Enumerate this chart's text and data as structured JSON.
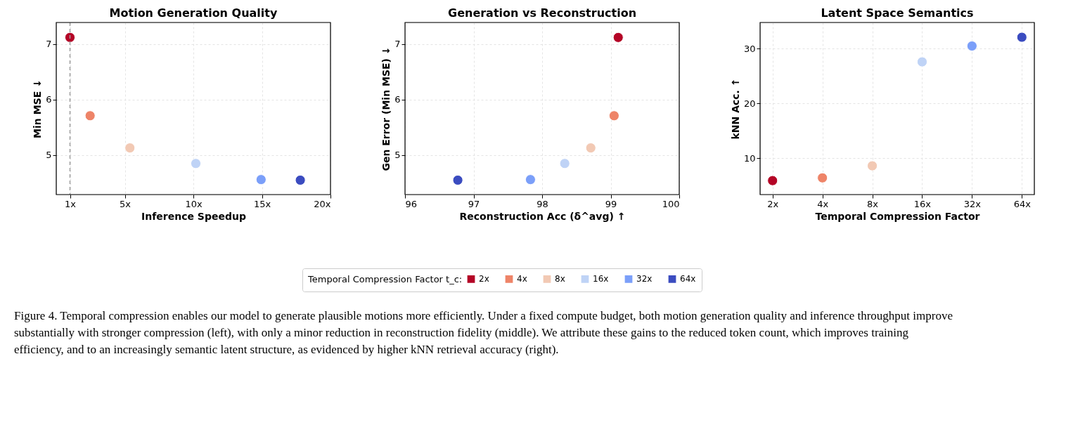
{
  "chart_data": [
    {
      "type": "scatter",
      "title": "Motion Generation Quality",
      "xlabel": "Inference Speedup",
      "ylabel": "Min MSE ↓",
      "xlim": [
        0,
        20
      ],
      "xticks": [
        {
          "value": 1,
          "label": "1x"
        },
        {
          "value": 5,
          "label": "5x"
        },
        {
          "value": 10,
          "label": "10x"
        },
        {
          "value": 15,
          "label": "15x"
        },
        {
          "value": 20,
          "label": "20x"
        }
      ],
      "ylim": [
        4.29,
        7.39
      ],
      "yticks": [
        5,
        6,
        7
      ],
      "grid": true,
      "marker": "circle",
      "legend": "bottom",
      "legend_title": "Temporal Compression Factor t_c:",
      "ref_lines": [
        {
          "axis": "x",
          "value": 1,
          "color": "#a0a0a0",
          "line_style": "dashed"
        }
      ],
      "series": [
        {
          "name": "2x",
          "color": "#b40426",
          "x": [
            1
          ],
          "values": [
            7.12
          ]
        },
        {
          "name": "4x",
          "color": "#ee8468",
          "x": [
            2.47
          ],
          "values": [
            5.71
          ]
        },
        {
          "name": "8x",
          "color": "#f2c9b4",
          "x": [
            5.37
          ],
          "values": [
            5.13
          ]
        },
        {
          "name": "16x",
          "color": "#bfd3f6",
          "x": [
            10.18
          ],
          "values": [
            4.85
          ]
        },
        {
          "name": "32x",
          "color": "#7b9ff9",
          "x": [
            14.94
          ],
          "values": [
            4.56
          ]
        },
        {
          "name": "64x",
          "color": "#3b4cc0",
          "x": [
            17.8
          ],
          "values": [
            4.55
          ]
        }
      ]
    },
    {
      "type": "scatter",
      "title": "Generation vs Reconstruction",
      "xlabel": "Reconstruction Acc (δ^avg) ↑",
      "ylabel": "Gen Error (Min MSE) ↓",
      "xlim": [
        96,
        100
      ],
      "xticks": [
        96,
        97,
        98,
        99,
        100
      ],
      "ylim": [
        4.29,
        7.39
      ],
      "yticks": [
        5,
        6,
        7
      ],
      "grid": true,
      "marker": "circle",
      "series": [
        {
          "color": "#b40426",
          "x": [
            99.11
          ],
          "values": [
            7.12
          ]
        },
        {
          "color": "#ee8468",
          "x": [
            99.05
          ],
          "values": [
            5.71
          ]
        },
        {
          "color": "#f2c9b4",
          "x": [
            98.71
          ],
          "values": [
            5.13
          ]
        },
        {
          "color": "#bfd3f6",
          "x": [
            98.33
          ],
          "values": [
            4.85
          ]
        },
        {
          "color": "#7b9ff9",
          "x": [
            97.83
          ],
          "values": [
            4.56
          ]
        },
        {
          "color": "#3b4cc0",
          "x": [
            96.77
          ],
          "values": [
            4.55
          ]
        }
      ]
    },
    {
      "type": "scatter",
      "title": "Latent Space Semantics",
      "xlabel": "Temporal Compression Factor",
      "ylabel": "kNN Acc. ↑",
      "categories": [
        "2x",
        "4x",
        "8x",
        "16x",
        "32x",
        "64x"
      ],
      "ylim": [
        3.35,
        34.8
      ],
      "yticks": [
        10,
        20,
        30
      ],
      "grid": true,
      "marker": "circle",
      "annotations": [
        "Figure 4. Temporal compression enables our model to generate plausible motions more efficiently. Under a fixed compute budget, both motion generation quality and inference throughput improve substantially with stronger compression (left), with only a minor reduction in reconstruction fidelity (middle). We attribute these gains to the reduced token count, which improves training efficiency, and to an increasingly semantic latent structure, as evidenced by higher kNN retrieval accuracy (right)."
      ],
      "series": [
        {
          "color": "#b40426",
          "values": [
            5.9,
            null,
            null,
            null,
            null,
            null
          ]
        },
        {
          "color": "#ee8468",
          "values": [
            null,
            6.4,
            null,
            null,
            null,
            null
          ]
        },
        {
          "color": "#f2c9b4",
          "values": [
            null,
            null,
            8.6,
            null,
            null,
            null
          ]
        },
        {
          "color": "#bfd3f6",
          "values": [
            null,
            null,
            null,
            27.6,
            null,
            null
          ]
        },
        {
          "color": "#7b9ff9",
          "values": [
            null,
            null,
            null,
            null,
            30.5,
            null
          ]
        },
        {
          "color": "#3b4cc0",
          "values": [
            null,
            null,
            null,
            null,
            null,
            32.1
          ]
        }
      ]
    }
  ]
}
